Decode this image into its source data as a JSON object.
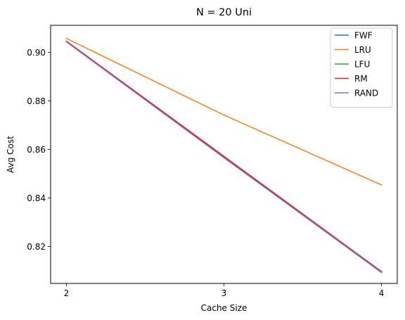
{
  "chart_data": {
    "type": "line",
    "title": "N = 20 Uni",
    "xlabel": "Cache Size",
    "ylabel": "Avg Cost",
    "x": [
      2,
      3,
      4
    ],
    "xticks": [
      "2",
      "3",
      "4"
    ],
    "xlim": [
      1.9,
      4.1
    ],
    "ylim": [
      0.8048,
      0.9112
    ],
    "yticks": [
      "0.82",
      "0.84",
      "0.86",
      "0.88",
      "0.90"
    ],
    "ytick_values": [
      0.82,
      0.84,
      0.86,
      0.88,
      0.9
    ],
    "grid": false,
    "legend_position": "top-right",
    "series": [
      {
        "name": "FWF",
        "color": "#1f77b4",
        "values": [
          0.9045,
          0.8567,
          0.8093
        ]
      },
      {
        "name": "LRU",
        "color": "#ff7f0e",
        "values": [
          0.9058,
          0.8742,
          0.8454
        ]
      },
      {
        "name": "LFU",
        "color": "#2ca02c",
        "values": [
          0.9045,
          0.8567,
          0.8093
        ]
      },
      {
        "name": "RM",
        "color": "#d62728",
        "values": [
          0.9047,
          0.8572,
          0.8097
        ]
      },
      {
        "name": "RAND",
        "color": "#9467bd",
        "values": [
          0.9044,
          0.8566,
          0.8094
        ]
      }
    ]
  }
}
